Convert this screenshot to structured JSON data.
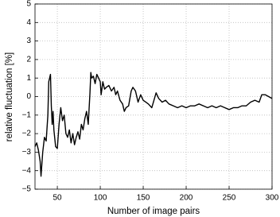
{
  "chart_data": {
    "type": "line",
    "xlabel": "Number of image pairs",
    "ylabel": "relative fluctuation [%]",
    "xlim": [
      24,
      300
    ],
    "ylim": [
      -5,
      5
    ],
    "xticks": [
      50,
      100,
      150,
      200,
      250,
      300
    ],
    "yticks": [
      {
        "value": -5,
        "label": "−5"
      },
      {
        "value": -4,
        "label": "−4"
      },
      {
        "value": -3,
        "label": "−3"
      },
      {
        "value": -2,
        "label": "−2"
      },
      {
        "value": -1,
        "label": "−1"
      },
      0,
      1,
      2,
      3,
      4,
      5
    ],
    "grid": true,
    "x": [
      24,
      26,
      28,
      30,
      31,
      33,
      35,
      37,
      39,
      40,
      42,
      43,
      44,
      45,
      46,
      48,
      50,
      52,
      54,
      56,
      58,
      60,
      62,
      64,
      66,
      68,
      70,
      72,
      74,
      76,
      78,
      80,
      82,
      84,
      86,
      88,
      89,
      90,
      92,
      94,
      96,
      98,
      100,
      101,
      103,
      105,
      107,
      110,
      113,
      116,
      118,
      120,
      123,
      126,
      128,
      130,
      133,
      136,
      138,
      141,
      144,
      147,
      150,
      153,
      156,
      160,
      165,
      168,
      172,
      176,
      180,
      185,
      190,
      195,
      200,
      205,
      210,
      215,
      220,
      225,
      230,
      235,
      240,
      245,
      250,
      255,
      260,
      265,
      270,
      275,
      280,
      285,
      288,
      292,
      296,
      300
    ],
    "series": [
      {
        "name": "fluctuation",
        "color": "#000000",
        "values": [
          -2.7,
          -2.5,
          -2.9,
          -3.5,
          -4.3,
          -3.0,
          -2.2,
          -2.4,
          -1.0,
          0.8,
          1.2,
          -0.5,
          -1.5,
          -0.8,
          -1.8,
          -2.7,
          -2.8,
          -1.5,
          -0.6,
          -1.3,
          -1.0,
          -2.0,
          -2.2,
          -1.8,
          -2.5,
          -2.0,
          -2.6,
          -2.2,
          -1.9,
          -2.3,
          -1.5,
          -1.8,
          -1.2,
          -0.8,
          -1.5,
          0.2,
          1.3,
          1.0,
          1.1,
          0.7,
          1.2,
          1.0,
          0.8,
          0.1,
          0.8,
          0.4,
          0.5,
          0.6,
          0.3,
          0.5,
          0.1,
          0.3,
          -0.2,
          -0.4,
          -0.8,
          -0.6,
          -0.5,
          0.3,
          0.5,
          0.3,
          -0.3,
          0.1,
          -0.2,
          -0.3,
          -0.4,
          -0.6,
          0.2,
          -0.1,
          -0.3,
          -0.2,
          -0.4,
          -0.5,
          -0.6,
          -0.5,
          -0.6,
          -0.5,
          -0.5,
          -0.4,
          -0.5,
          -0.6,
          -0.5,
          -0.6,
          -0.5,
          -0.6,
          -0.7,
          -0.6,
          -0.6,
          -0.5,
          -0.5,
          -0.3,
          -0.2,
          -0.3,
          0.1,
          0.1,
          0.0,
          -0.1
        ]
      }
    ]
  }
}
